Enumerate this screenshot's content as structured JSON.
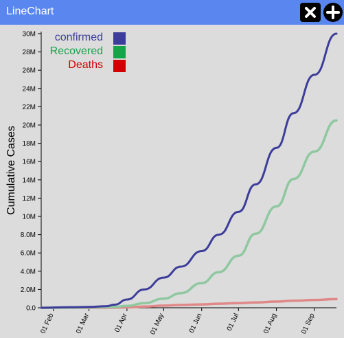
{
  "window": {
    "title": "LineChart"
  },
  "toolbar": {
    "close_icon": "close-icon",
    "add_icon": "plus-circle-icon"
  },
  "colors": {
    "titlebar": "#5a86f0",
    "background": "#dcdcdc",
    "confirmed": "#3c3c9a",
    "recovered": "#8fc8a0",
    "deaths": "#e08888"
  },
  "chart_data": {
    "type": "line",
    "ylabel": "Cumulative Cases",
    "ylim": [
      0,
      30000000
    ],
    "y_ticks": [
      "0.0",
      "2.0M",
      "4.0M",
      "6.0M",
      "8.0M",
      "10M",
      "12M",
      "14M",
      "16M",
      "18M",
      "20M",
      "22M",
      "24M",
      "26M",
      "28M",
      "30M"
    ],
    "x_ticks": [
      "01 Feb",
      "01 Mar",
      "01 Apr",
      "01 May",
      "01 Jun",
      "01 Jul",
      "01 Aug",
      "01 Sep"
    ],
    "xlim": [
      "2020-01-22",
      "2020-09-19"
    ],
    "legend_position": "top-left",
    "x": [
      "2020-01-22",
      "2020-02-15",
      "2020-03-01",
      "2020-03-15",
      "2020-03-22",
      "2020-04-01",
      "2020-04-15",
      "2020-05-01",
      "2020-05-15",
      "2020-06-01",
      "2020-06-15",
      "2020-07-01",
      "2020-07-15",
      "2020-08-01",
      "2020-08-15",
      "2020-09-01",
      "2020-09-19"
    ],
    "series": [
      {
        "name": "confirmed",
        "color": "#3c3c9a",
        "values": [
          550,
          70000,
          90000,
          170000,
          340000,
          900000,
          2000000,
          3300000,
          4500000,
          6200000,
          8000000,
          10500000,
          13500000,
          17500000,
          21300000,
          25500000,
          30000000
        ]
      },
      {
        "name": "Recovered",
        "color": "#8fc8a0",
        "values": [
          30,
          10000,
          45000,
          80000,
          100000,
          200000,
          500000,
          1000000,
          1600000,
          2700000,
          3900000,
          5700000,
          8100000,
          11100000,
          14100000,
          17100000,
          20500000
        ]
      },
      {
        "name": "Deaths",
        "color": "#e08888",
        "values": [
          17,
          1500,
          3000,
          6500,
          15000,
          45000,
          130000,
          230000,
          310000,
          370000,
          440000,
          510000,
          580000,
          680000,
          770000,
          860000,
          950000
        ]
      }
    ]
  }
}
